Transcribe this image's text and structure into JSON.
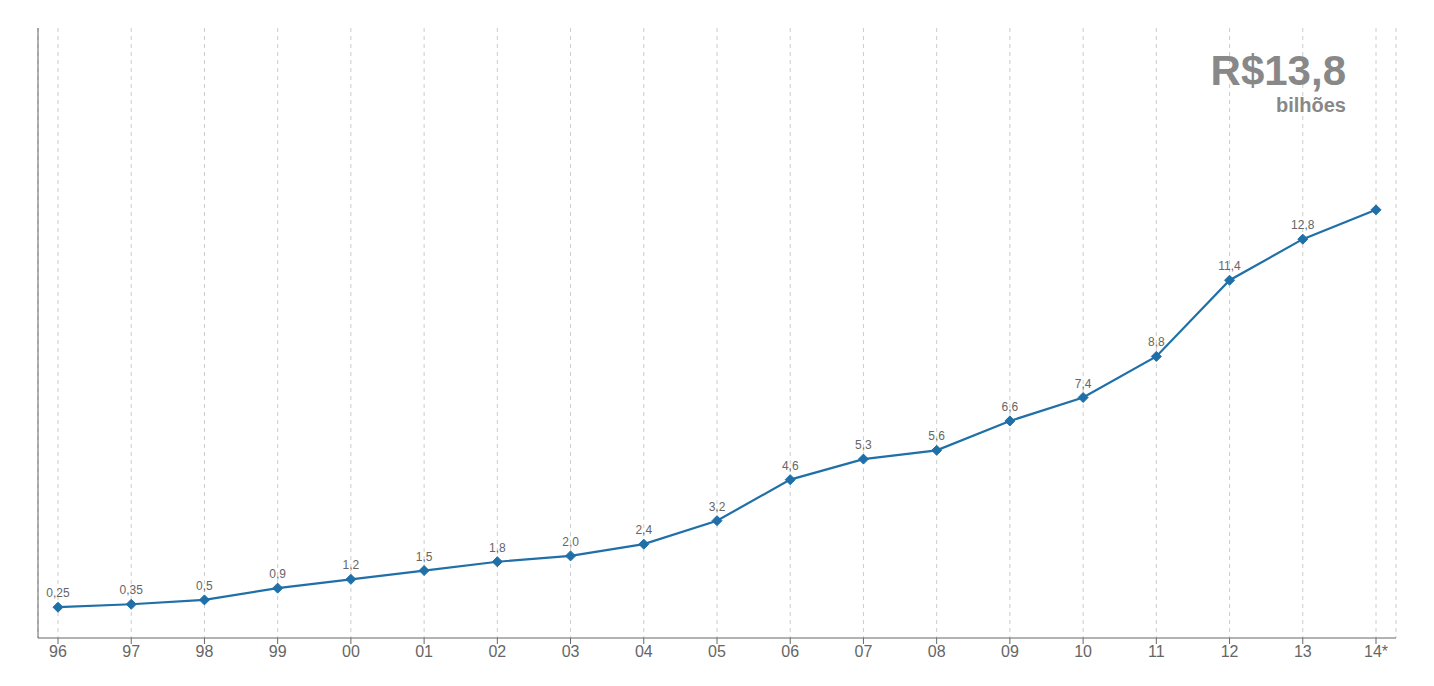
{
  "chart_data": {
    "type": "line",
    "categories": [
      "96",
      "97",
      "98",
      "99",
      "00",
      "01",
      "02",
      "03",
      "04",
      "05",
      "06",
      "07",
      "08",
      "09",
      "10",
      "11",
      "12",
      "13",
      "14*"
    ],
    "values": [
      0.25,
      0.35,
      0.5,
      0.9,
      1.2,
      1.5,
      1.8,
      2.0,
      2.4,
      3.2,
      4.6,
      5.3,
      5.6,
      6.6,
      7.4,
      8.8,
      11.4,
      12.8,
      13.8
    ],
    "value_labels": [
      "0,25",
      "0,35",
      "0,5",
      "0,9",
      "1,2",
      "1,5",
      "1,8",
      "2,0",
      "2,4",
      "3,2",
      "4,6",
      "5,3",
      "5,6",
      "6,6",
      "7,4",
      "8,8",
      "11,4",
      "12,8",
      null
    ],
    "data_labels": true,
    "color": "#1f6fa8",
    "marker": "diamond",
    "ylim": [
      -0.8,
      20.0
    ],
    "grid": true,
    "tick_labels": "x",
    "annotations": [
      "R$13,8",
      "bilhões"
    ]
  }
}
